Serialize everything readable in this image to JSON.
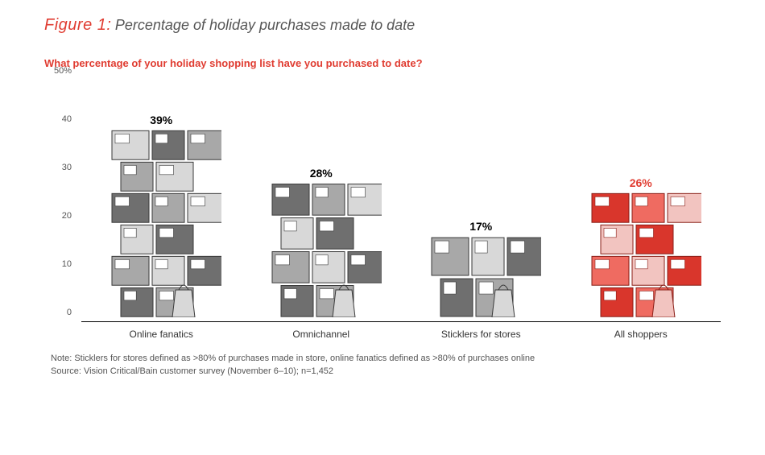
{
  "figure": {
    "label": "Figure 1:",
    "title": "Percentage of holiday purchases made to date"
  },
  "question": "What percentage of your holiday shopping list have you purchased to date?",
  "chart": {
    "type": "pictogram-bar",
    "y_axis": {
      "min": 0,
      "max": 50,
      "tick_step": 10,
      "ticks": [
        0,
        10,
        20,
        30,
        40,
        50
      ],
      "top_label": "50%"
    },
    "categories": [
      {
        "label": "Online fanatics",
        "value": 39,
        "value_label": "39%",
        "value_color": "#000000",
        "palette": "gray"
      },
      {
        "label": "Omnichannel",
        "value": 28,
        "value_label": "28%",
        "value_color": "#000000",
        "palette": "gray"
      },
      {
        "label": "Sticklers for stores",
        "value": 17,
        "value_label": "17%",
        "value_color": "#000000",
        "palette": "gray"
      },
      {
        "label": "All shoppers",
        "value": 26,
        "value_label": "26%",
        "value_color": "#e03c31",
        "palette": "red"
      }
    ],
    "palettes": {
      "gray": {
        "dark": "#6f6f6f",
        "mid": "#a8a8a8",
        "light": "#d8d8d8",
        "stroke": "#3a3a3a"
      },
      "red": {
        "dark": "#d9362c",
        "mid": "#ef6b61",
        "light": "#f2c4c0",
        "stroke": "#8a1f18"
      }
    },
    "axis_color": "#000000",
    "tick_font_size": 11,
    "label_font_size": 12,
    "value_font_size": 14,
    "background_color": "#ffffff"
  },
  "notes": {
    "line1": "Note: Sticklers for stores defined as >80% of purchases made in store, online fanatics defined as >80% of purchases online",
    "line2": "Source: Vision Critical/Bain customer survey (November 6–10); n=1,452"
  }
}
